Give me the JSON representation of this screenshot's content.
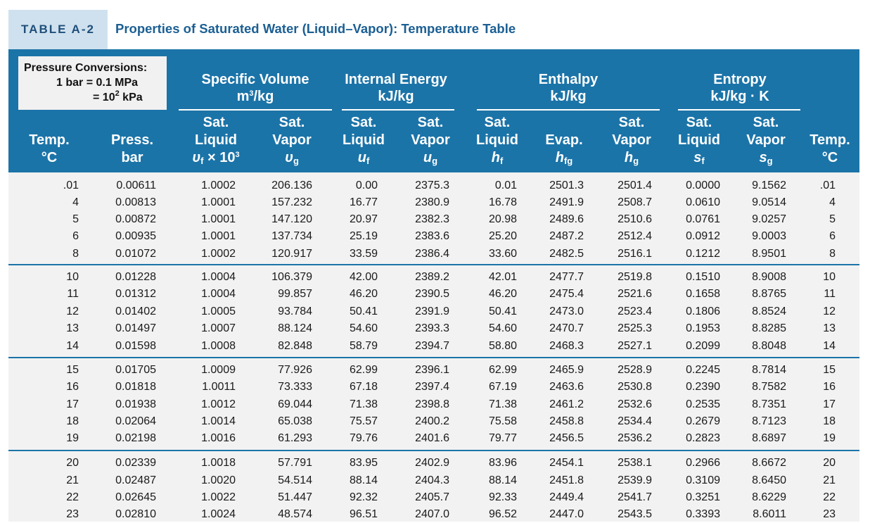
{
  "table_label": "TABLE A-2",
  "table_title": "Properties of Saturated Water (Liquid–Vapor): Temperature Table",
  "pressure_conversions": {
    "heading": "Pressure Conversions:",
    "line1": "1 bar = 0.1 MPa",
    "line2_prefix": "= 10",
    "line2_exp": "2",
    "line2_suffix": " kPa"
  },
  "groups": {
    "specific_volume": {
      "title": "Specific Volume",
      "unit_base": "m",
      "unit_exp": "3",
      "unit_tail": "/kg"
    },
    "internal_energy": {
      "title": "Internal Energy",
      "unit": "kJ/kg"
    },
    "enthalpy": {
      "title": "Enthalpy",
      "unit": "kJ/kg"
    },
    "entropy": {
      "title": "Entropy",
      "unit": "kJ/kg · K"
    }
  },
  "columns": {
    "temp": {
      "l1": "Temp.",
      "l2": "°C"
    },
    "press": {
      "l1": "Press.",
      "l2": "bar"
    },
    "vf": {
      "l1": "Sat.",
      "l2": "Liquid",
      "sym": "υ",
      "sub": "f",
      "mult": " × 10",
      "exp": "3"
    },
    "vg": {
      "l1": "Sat.",
      "l2": "Vapor",
      "sym": "υ",
      "sub": "g"
    },
    "uf": {
      "l1": "Sat.",
      "l2": "Liquid",
      "sym": "u",
      "sub": "f"
    },
    "ug": {
      "l1": "Sat.",
      "l2": "Vapor",
      "sym": "u",
      "sub": "g"
    },
    "hf": {
      "l1": "Sat.",
      "l2": "Liquid",
      "sym": "h",
      "sub": "f"
    },
    "hfg": {
      "l1": "Evap.",
      "sym": "h",
      "sub": "fg"
    },
    "hg": {
      "l1": "Sat.",
      "l2": "Vapor",
      "sym": "h",
      "sub": "g"
    },
    "sf": {
      "l1": "Sat.",
      "l2": "Liquid",
      "sym": "s",
      "sub": "f"
    },
    "sg": {
      "l1": "Sat.",
      "l2": "Vapor",
      "sym": "s",
      "sub": "g"
    },
    "temp2": {
      "l1": "Temp.",
      "l2": "°C"
    }
  },
  "rows": [
    [
      ".01",
      "0.00611",
      "1.0002",
      "206.136",
      "0.00",
      "2375.3",
      "0.01",
      "2501.3",
      "2501.4",
      "0.0000",
      "9.1562",
      ".01"
    ],
    [
      "4",
      "0.00813",
      "1.0001",
      "157.232",
      "16.77",
      "2380.9",
      "16.78",
      "2491.9",
      "2508.7",
      "0.0610",
      "9.0514",
      "4"
    ],
    [
      "5",
      "0.00872",
      "1.0001",
      "147.120",
      "20.97",
      "2382.3",
      "20.98",
      "2489.6",
      "2510.6",
      "0.0761",
      "9.0257",
      "5"
    ],
    [
      "6",
      "0.00935",
      "1.0001",
      "137.734",
      "25.19",
      "2383.6",
      "25.20",
      "2487.2",
      "2512.4",
      "0.0912",
      "9.0003",
      "6"
    ],
    [
      "8",
      "0.01072",
      "1.0002",
      "120.917",
      "33.59",
      "2386.4",
      "33.60",
      "2482.5",
      "2516.1",
      "0.1212",
      "8.9501",
      "8"
    ],
    [
      "10",
      "0.01228",
      "1.0004",
      "106.379",
      "42.00",
      "2389.2",
      "42.01",
      "2477.7",
      "2519.8",
      "0.1510",
      "8.9008",
      "10"
    ],
    [
      "11",
      "0.01312",
      "1.0004",
      "99.857",
      "46.20",
      "2390.5",
      "46.20",
      "2475.4",
      "2521.6",
      "0.1658",
      "8.8765",
      "11"
    ],
    [
      "12",
      "0.01402",
      "1.0005",
      "93.784",
      "50.41",
      "2391.9",
      "50.41",
      "2473.0",
      "2523.4",
      "0.1806",
      "8.8524",
      "12"
    ],
    [
      "13",
      "0.01497",
      "1.0007",
      "88.124",
      "54.60",
      "2393.3",
      "54.60",
      "2470.7",
      "2525.3",
      "0.1953",
      "8.8285",
      "13"
    ],
    [
      "14",
      "0.01598",
      "1.0008",
      "82.848",
      "58.79",
      "2394.7",
      "58.80",
      "2468.3",
      "2527.1",
      "0.2099",
      "8.8048",
      "14"
    ],
    [
      "15",
      "0.01705",
      "1.0009",
      "77.926",
      "62.99",
      "2396.1",
      "62.99",
      "2465.9",
      "2528.9",
      "0.2245",
      "8.7814",
      "15"
    ],
    [
      "16",
      "0.01818",
      "1.0011",
      "73.333",
      "67.18",
      "2397.4",
      "67.19",
      "2463.6",
      "2530.8",
      "0.2390",
      "8.7582",
      "16"
    ],
    [
      "17",
      "0.01938",
      "1.0012",
      "69.044",
      "71.38",
      "2398.8",
      "71.38",
      "2461.2",
      "2532.6",
      "0.2535",
      "8.7351",
      "17"
    ],
    [
      "18",
      "0.02064",
      "1.0014",
      "65.038",
      "75.57",
      "2400.2",
      "75.58",
      "2458.8",
      "2534.4",
      "0.2679",
      "8.7123",
      "18"
    ],
    [
      "19",
      "0.02198",
      "1.0016",
      "61.293",
      "79.76",
      "2401.6",
      "79.77",
      "2456.5",
      "2536.2",
      "0.2823",
      "8.6897",
      "19"
    ],
    [
      "20",
      "0.02339",
      "1.0018",
      "57.791",
      "83.95",
      "2402.9",
      "83.96",
      "2454.1",
      "2538.1",
      "0.2966",
      "8.6672",
      "20"
    ],
    [
      "21",
      "0.02487",
      "1.0020",
      "54.514",
      "88.14",
      "2404.3",
      "88.14",
      "2451.8",
      "2539.9",
      "0.3109",
      "8.6450",
      "21"
    ],
    [
      "22",
      "0.02645",
      "1.0022",
      "51.447",
      "92.32",
      "2405.7",
      "92.33",
      "2449.4",
      "2541.7",
      "0.3251",
      "8.6229",
      "22"
    ],
    [
      "23",
      "0.02810",
      "1.0024",
      "48.574",
      "96.51",
      "2407.0",
      "96.52",
      "2447.0",
      "2543.5",
      "0.3393",
      "8.6011",
      "23"
    ]
  ]
}
